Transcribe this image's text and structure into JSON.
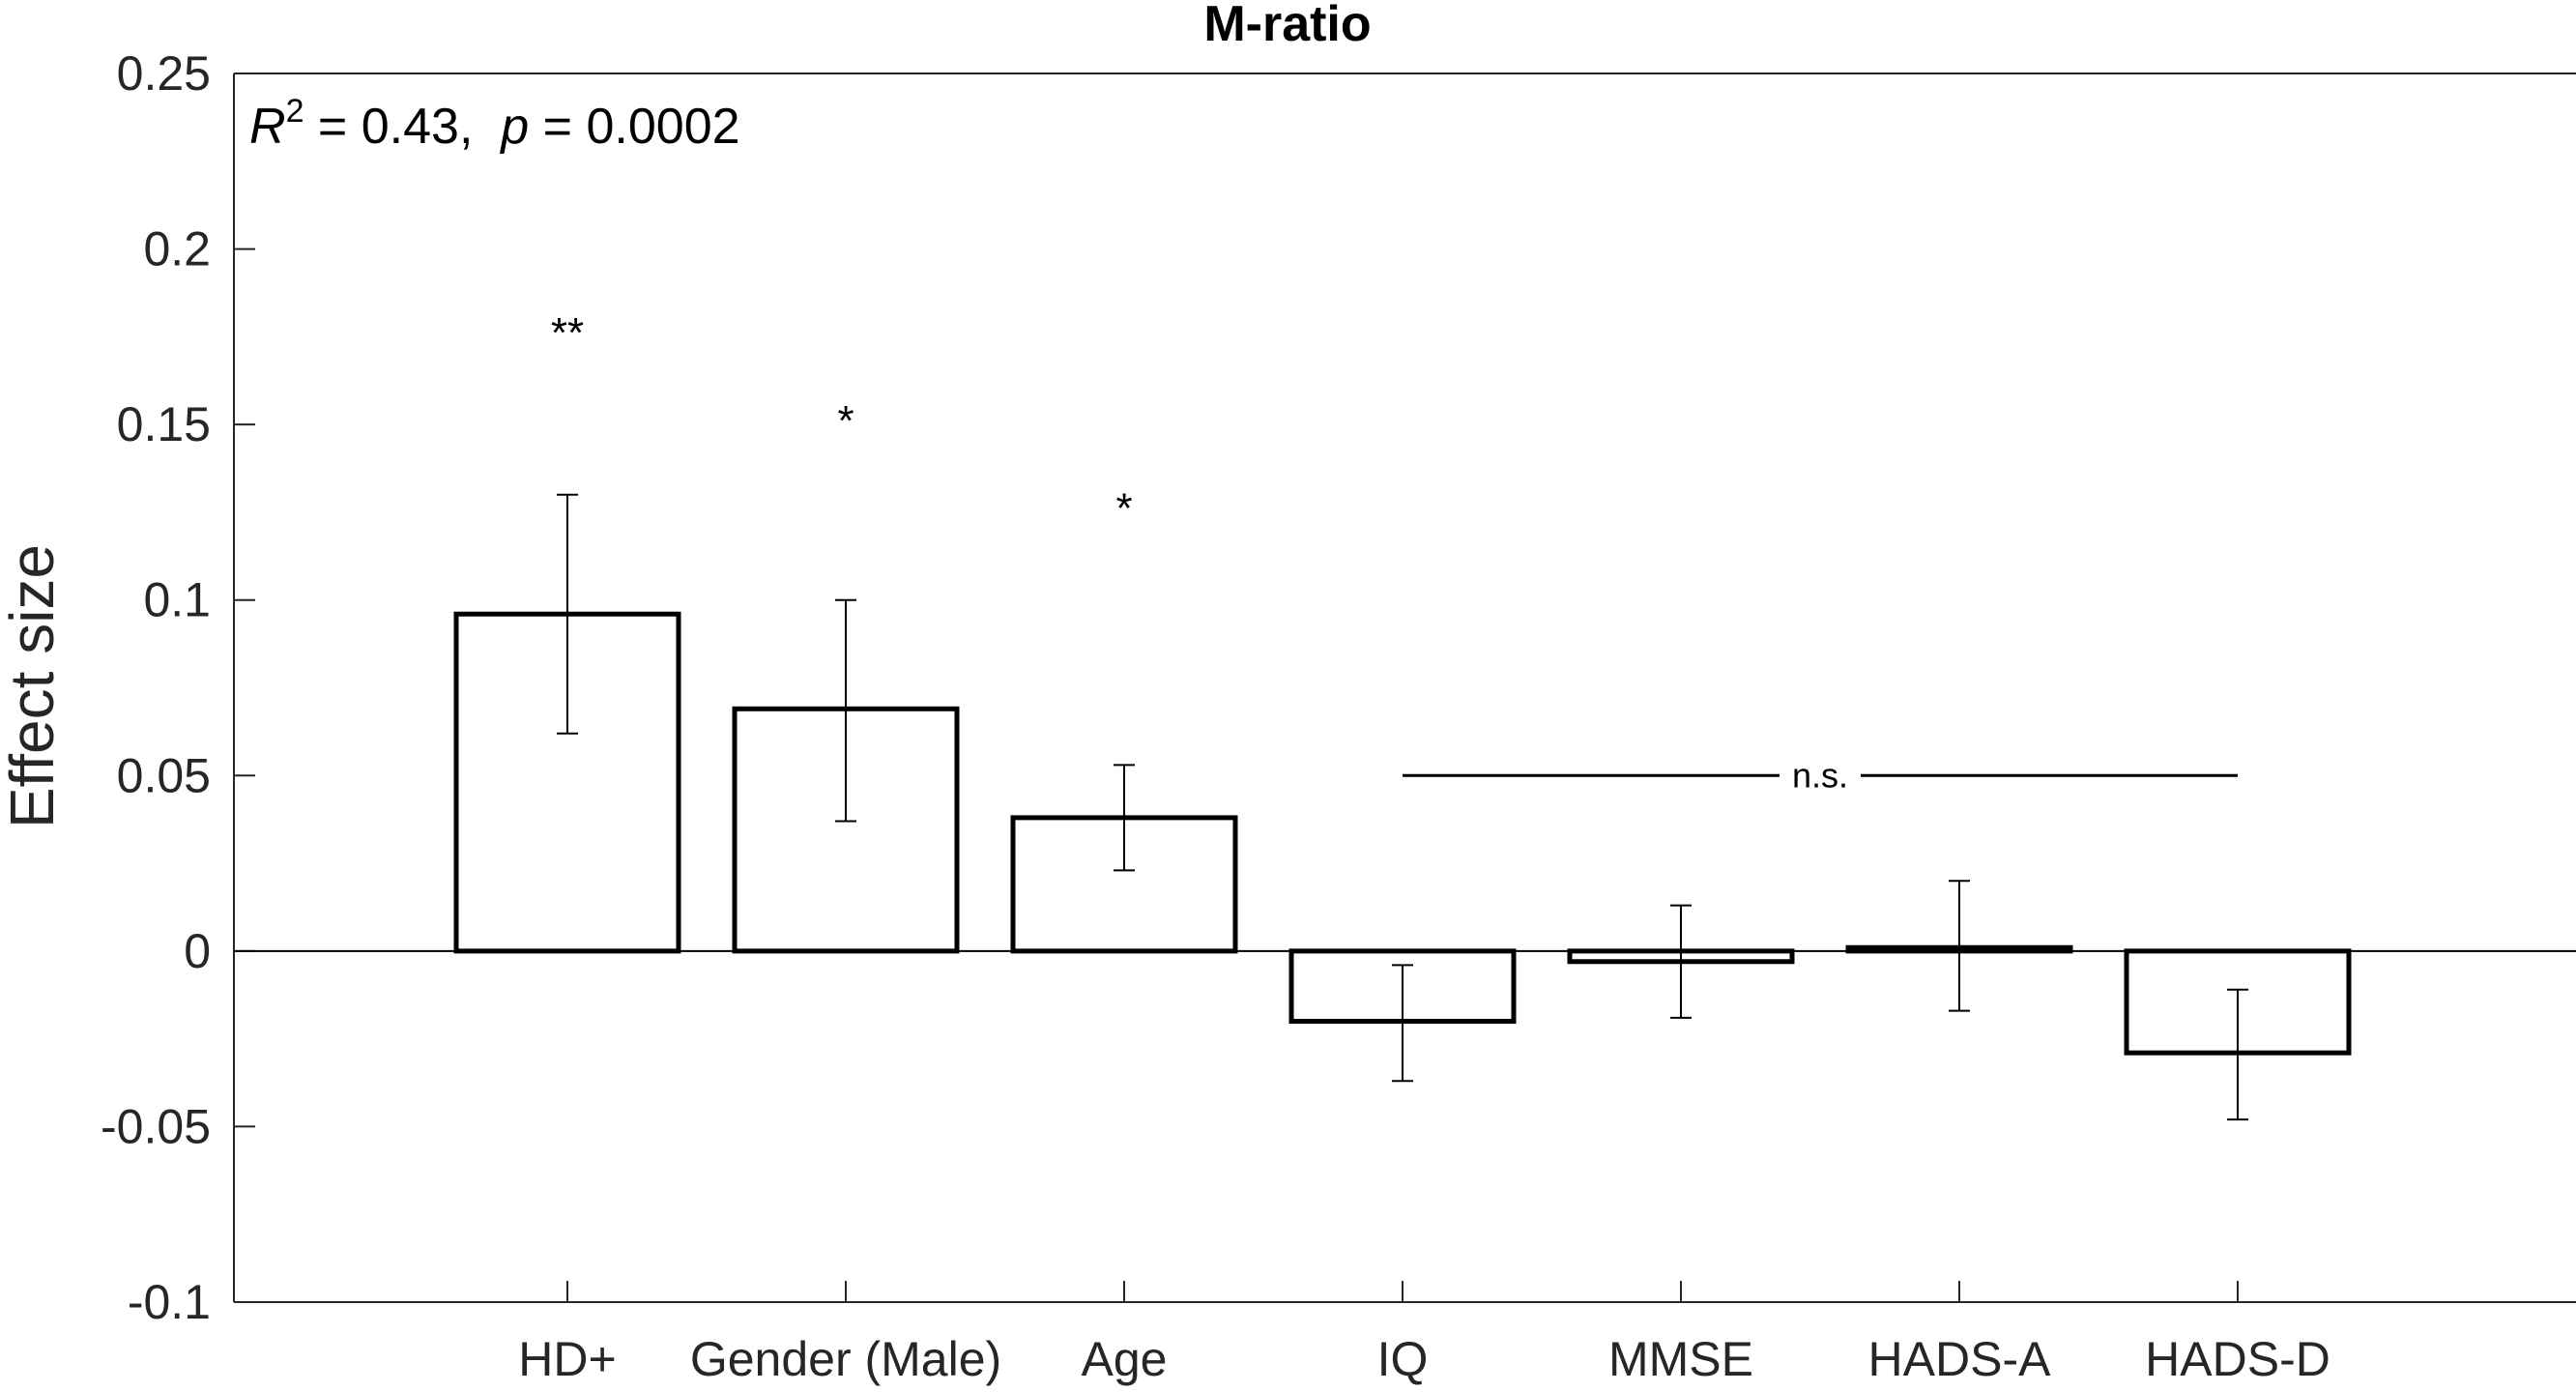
{
  "chart_data": {
    "type": "bar",
    "title": "M-ratio",
    "xlabel": "",
    "ylabel": "Effect size",
    "ylim": [
      -0.1,
      0.25
    ],
    "yticks": [
      -0.1,
      -0.05,
      0,
      0.05,
      0.1,
      0.15,
      0.2,
      0.25
    ],
    "ytick_labels": [
      "-0.1",
      "-0.05",
      "0",
      "0.05",
      "0.1",
      "0.15",
      "0.2",
      "0.25"
    ],
    "categories": [
      "HD+",
      "Gender (Male)",
      "Age",
      "IQ",
      "MMSE",
      "HADS-A",
      "HADS-D"
    ],
    "values": [
      0.096,
      0.069,
      0.038,
      -0.02,
      -0.003,
      0.001,
      -0.029
    ],
    "error_low": [
      0.062,
      0.037,
      0.023,
      -0.037,
      -0.019,
      -0.017,
      -0.048
    ],
    "error_high": [
      0.13,
      0.1,
      0.053,
      -0.004,
      0.013,
      0.02,
      -0.011
    ],
    "significance": [
      "**",
      "*",
      "*",
      "",
      "",
      "",
      ""
    ],
    "significance_y": [
      0.177,
      0.152,
      0.127,
      null,
      null,
      null,
      null
    ],
    "stats_annotation": {
      "r_symbol": "R",
      "r_superscript": "2",
      "r_value": " = 0.43,  ",
      "p_symbol": "p",
      "p_value": " = 0.0002"
    },
    "ns_bracket": {
      "label": "n.s.",
      "from_category": "IQ",
      "to_category": "HADS-D",
      "y": 0.05
    },
    "bar_fill": "#ffffff",
    "bar_stroke": "#000000",
    "grid": false
  }
}
